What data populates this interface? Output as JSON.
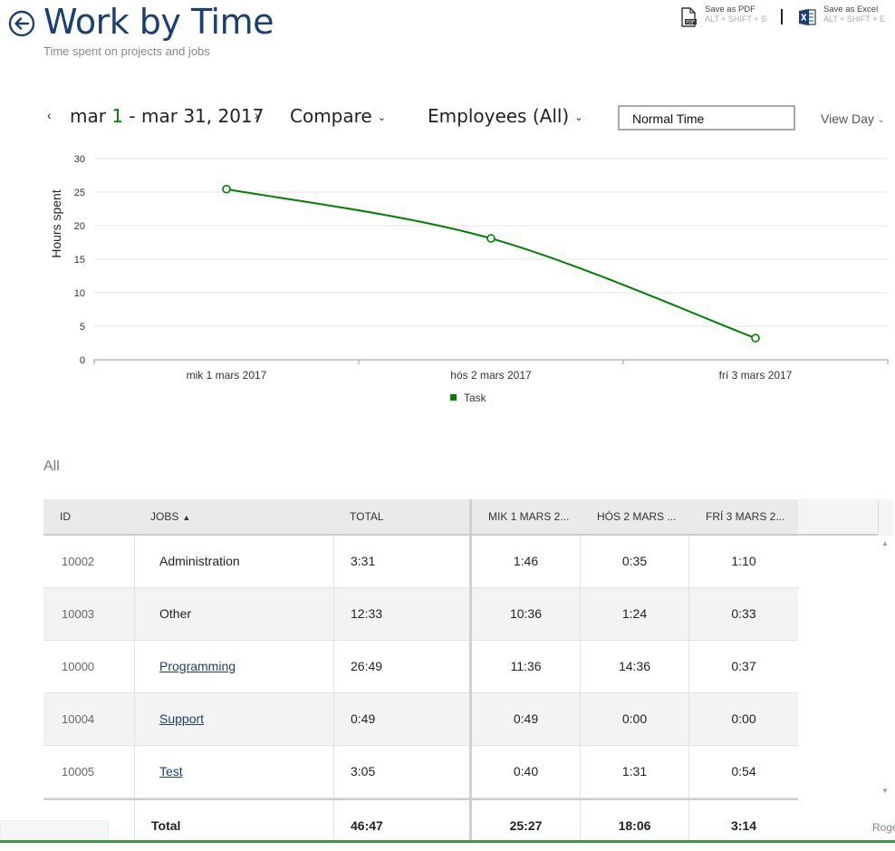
{
  "header": {
    "title": "Work by Time",
    "subtitle": "Time spent on projects and jobs",
    "export_pdf": {
      "label": "Save as PDF",
      "shortcut": "ALT + SHIFT + S",
      "icon": "pdf-document-icon"
    },
    "export_excel": {
      "label": "Save as Excel",
      "shortcut": "ALT + SHIFT + E",
      "icon": "excel-document-icon"
    }
  },
  "toolbar": {
    "prev": "‹",
    "next": "›",
    "date_prefix": "mar ",
    "date_day": "1",
    "date_suffix": " - mar 31, 2017",
    "compare": "Compare",
    "employees": "Employees (All)",
    "time_type": "Normal Time",
    "view": "View Day",
    "caret": "⌄"
  },
  "chart_data": {
    "type": "line",
    "x": [
      "mik 1 mars 2017",
      "hós 2 mars 2017",
      "frí 3 mars 2017"
    ],
    "series": [
      {
        "name": "Task",
        "values": [
          25.45,
          18.1,
          3.23
        ],
        "color": "#008000"
      }
    ],
    "ylabel": "Hours spent",
    "ylim": [
      0,
      30
    ],
    "yticks": [
      0,
      5,
      10,
      15,
      20,
      25,
      30
    ],
    "grid": true,
    "legend": "bottom-center"
  },
  "section_label": "All",
  "table": {
    "columns": {
      "id": "ID",
      "jobs": "JOBS",
      "total": "TOTAL",
      "d1": "MIK 1 MARS 2...",
      "d2": "HÓS 2 MARS ...",
      "d3": "FRÍ 3 MARS 2..."
    },
    "sort_icon": "▲",
    "rows": [
      {
        "id": "10002",
        "job": "Administration",
        "total": "3:31",
        "d1": "1:46",
        "d2": "0:35",
        "d3": "1:10"
      },
      {
        "id": "10003",
        "job": "Other",
        "total": "12:33",
        "d1": "10:36",
        "d2": "1:24",
        "d3": "0:33"
      },
      {
        "id": "10000",
        "job": "Programming",
        "total": "26:49",
        "d1": "11:36",
        "d2": "14:36",
        "d3": "0:37"
      },
      {
        "id": "10004",
        "job": "Support",
        "total": "0:49",
        "d1": "0:49",
        "d2": "0:00",
        "d3": "0:00"
      },
      {
        "id": "10005",
        "job": "Test",
        "total": "3:05",
        "d1": "0:40",
        "d2": "1:31",
        "d3": "0:54"
      }
    ],
    "totals": {
      "label": "Total",
      "total": "46:47",
      "d1": "25:27",
      "d2": "18:06",
      "d3": "3:14"
    }
  },
  "overflow_text": "Roge",
  "colors": {
    "title": "#1b3f73",
    "series": "#008000",
    "accent_bottom": "#3a9a3a"
  }
}
